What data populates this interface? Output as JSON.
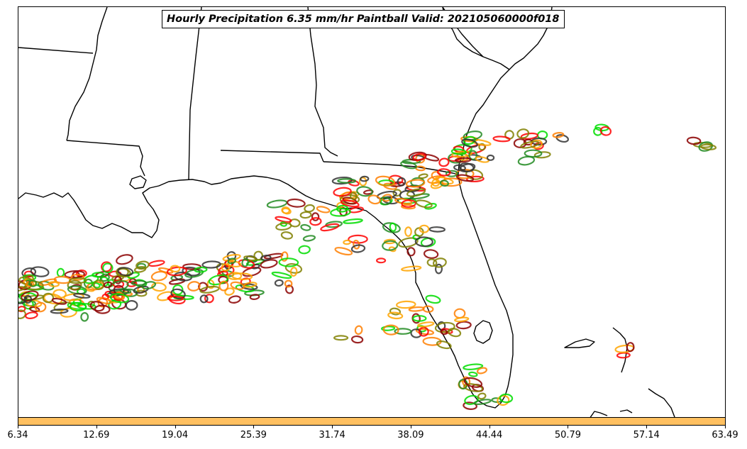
{
  "title": "Hourly Precipitation 6.35 mm/hr Paintball Valid: 202105060000f018",
  "colorbar": {
    "color": "#ffc060",
    "ticks": [
      "6.34",
      "12.69",
      "19.04",
      "25.39",
      "31.74",
      "38.09",
      "44.44",
      "50.79",
      "57.14",
      "63.49"
    ]
  },
  "map": {
    "region": "Southeastern United States / Gulf of Mexico / Florida",
    "member_colors": [
      "#ff0000",
      "#ff7f00",
      "#228b22",
      "#00dd00",
      "#808000",
      "#8b0000",
      "#333333",
      "#ffa500"
    ]
  }
}
